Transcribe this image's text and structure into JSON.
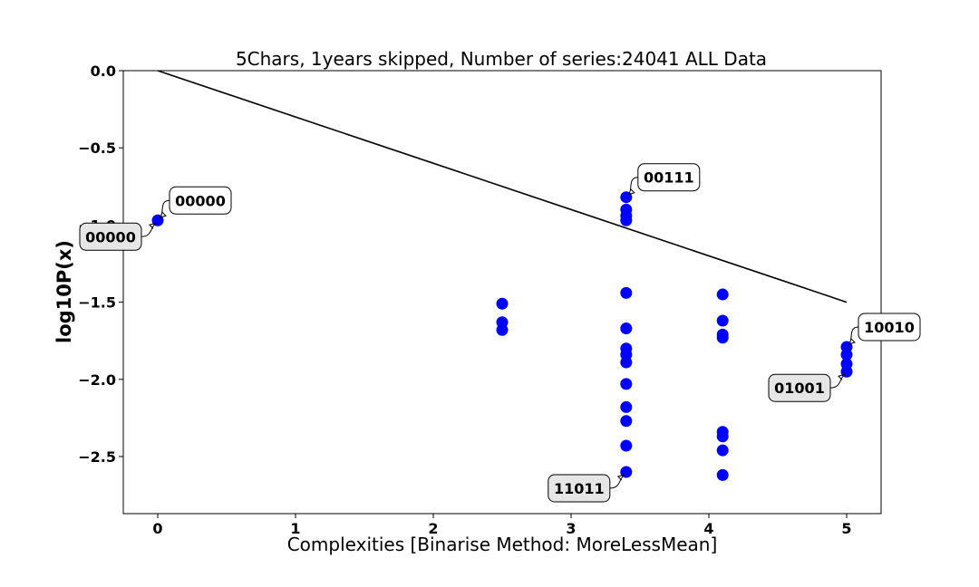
{
  "chart_data": {
    "type": "scatter",
    "title": "5Chars, 1years skipped, Number of series:24041 ALL Data",
    "xlabel": "Complexities [Binarise Method: MoreLessMean]",
    "ylabel": "log10P(x)",
    "xlim": [
      -0.25,
      5.25
    ],
    "ylim": [
      -2.87,
      0.0
    ],
    "xticks": [
      0,
      1,
      2,
      3,
      4,
      5
    ],
    "xtick_labels": [
      "0",
      "1",
      "2",
      "3",
      "4",
      "5"
    ],
    "yticks": [
      0.0,
      -0.5,
      -1.0,
      -1.5,
      -2.0,
      -2.5
    ],
    "ytick_labels": [
      "0.0",
      "−0.5",
      "−1.0",
      "−1.5",
      "−2.0",
      "−2.5"
    ],
    "grid": false,
    "colors": {
      "points": "#0000ff",
      "line": "#000000",
      "box_upper": "#ffffff",
      "box_lower": "#e6e6e6"
    },
    "line": {
      "x": [
        0,
        5
      ],
      "y": [
        0.0,
        -1.5
      ]
    },
    "points": [
      {
        "x": 0,
        "y": -0.97
      },
      {
        "x": 2.5,
        "y": -1.51
      },
      {
        "x": 2.5,
        "y": -1.63
      },
      {
        "x": 2.5,
        "y": -1.68
      },
      {
        "x": 3.4,
        "y": -0.82
      },
      {
        "x": 3.4,
        "y": -0.9
      },
      {
        "x": 3.4,
        "y": -0.94
      },
      {
        "x": 3.4,
        "y": -0.97
      },
      {
        "x": 3.4,
        "y": -1.44
      },
      {
        "x": 3.4,
        "y": -1.67
      },
      {
        "x": 3.4,
        "y": -1.8
      },
      {
        "x": 3.4,
        "y": -1.84
      },
      {
        "x": 3.4,
        "y": -1.89
      },
      {
        "x": 3.4,
        "y": -2.03
      },
      {
        "x": 3.4,
        "y": -2.18
      },
      {
        "x": 3.4,
        "y": -2.27
      },
      {
        "x": 3.4,
        "y": -2.43
      },
      {
        "x": 3.4,
        "y": -2.6
      },
      {
        "x": 4.1,
        "y": -1.45
      },
      {
        "x": 4.1,
        "y": -1.62
      },
      {
        "x": 4.1,
        "y": -1.71
      },
      {
        "x": 4.1,
        "y": -1.73
      },
      {
        "x": 4.1,
        "y": -2.34
      },
      {
        "x": 4.1,
        "y": -2.37
      },
      {
        "x": 4.1,
        "y": -2.46
      },
      {
        "x": 4.1,
        "y": -2.62
      },
      {
        "x": 5,
        "y": -1.79
      },
      {
        "x": 5,
        "y": -1.84
      },
      {
        "x": 5,
        "y": -1.9
      },
      {
        "x": 5,
        "y": -1.95
      }
    ],
    "annotations": [
      {
        "text": "00000",
        "x": 0,
        "y": -0.97,
        "style": "upper"
      },
      {
        "text": "00000",
        "x": 0,
        "y": -0.97,
        "style": "lower"
      },
      {
        "text": "00111",
        "x": 3.4,
        "y": -0.82,
        "style": "upper"
      },
      {
        "text": "11011",
        "x": 3.4,
        "y": -2.6,
        "style": "lower"
      },
      {
        "text": "10010",
        "x": 5,
        "y": -1.79,
        "style": "upper"
      },
      {
        "text": "01001",
        "x": 5,
        "y": -1.95,
        "style": "lower"
      }
    ]
  }
}
